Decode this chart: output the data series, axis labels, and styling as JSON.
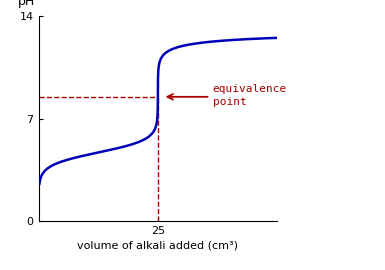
{
  "title": "",
  "xlabel": "volume of alkali added (cm³)",
  "ylabel": "pH",
  "xlim": [
    0,
    50
  ],
  "ylim": [
    0,
    14
  ],
  "yticks": [
    0,
    7,
    14
  ],
  "xticks": [
    25
  ],
  "equiv_x": 25,
  "equiv_pH": 8.5,
  "curve_color": "#0000bb",
  "dashed_color": "#aa0000",
  "arrow_color": "#aa0000",
  "annotation_text": "equivalence\npoint",
  "annotation_fontsize": 8,
  "background_color": "#ffffff",
  "curve_linewidth": 1.8,
  "pKa": 4.7,
  "start_pH": 2.5,
  "after_equiv_asymptote": 13.7
}
